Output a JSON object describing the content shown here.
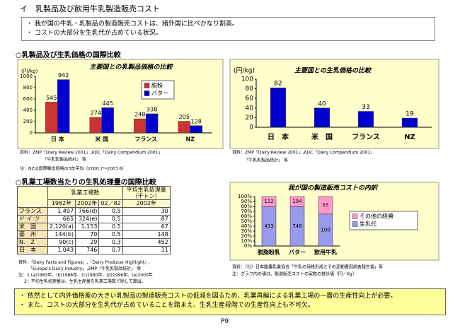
{
  "title": "イ　乳製品及び飲用牛乳製造販売コスト",
  "summary": [
    "我が国の牛乳・乳製品の製造販売コストは、諸外国に比べかなり割高。",
    "コストの大部分を生乳代が占めている状況。"
  ],
  "section1_heading": "○乳製品及び生乳価格の国際比較",
  "chart_data": [
    {
      "type": "bar",
      "title": "主要国との乳製品価格の比較",
      "ylabel": "(円/kg)",
      "categories": [
        "日 本",
        "米 国",
        "フランス",
        "NZ"
      ],
      "series": [
        {
          "name": "脱粉",
          "color": "#cc3333",
          "values": [
            545,
            274,
            248,
            205
          ]
        },
        {
          "name": "バター",
          "color": "#0000cc",
          "values": [
            942,
            445,
            338,
            128
          ]
        }
      ],
      "ylim": [
        0,
        1000
      ],
      "yticks": [
        0,
        200,
        400,
        600,
        800,
        1000
      ],
      "grid": false,
      "legend": "upper-right",
      "notes": [
        "資料：ZMP「Dairy Review 2001」,ADC「Dairy Compendium 2001」",
        "「牛乳乳製品統計」 等",
        "注：NZは国際輸出価格の3年平均（2000.7～2003.6）"
      ]
    },
    {
      "type": "bar",
      "title": "主要国との生乳価格の比較",
      "ylabel": "(円/kg)",
      "categories": [
        "日　本",
        "米　国",
        "フランス",
        "NZ"
      ],
      "values": [
        82,
        40,
        33,
        19
      ],
      "color": "#0000cc",
      "ylim": [
        0,
        100
      ],
      "yticks": [
        0,
        20,
        40,
        60,
        80,
        100
      ],
      "grid": false,
      "notes": [
        "資料：ZMP「Dairy Review 2001」,ADC「Dairy Compendium 2001」",
        "「牛乳乳製品統計」 等"
      ]
    },
    {
      "type": "stacked_bar_100",
      "title": "我が国の製造販売コストの内訳",
      "categories": [
        "脱脂粉乳",
        "バター",
        "飲用牛乳"
      ],
      "series": [
        {
          "name": "生乳代",
          "color": "#9999ee",
          "values": [
            433,
            748,
            100
          ]
        },
        {
          "name": "その他の経費",
          "color": "#ff99cc",
          "values": [
            112,
            194,
            55
          ]
        }
      ],
      "ylim": [
        0,
        100
      ],
      "yticks": [
        {
          "value": 0,
          "label": "0%"
        },
        {
          "value": 10,
          "label": "10%"
        },
        {
          "value": 20,
          "label": "20%"
        },
        {
          "value": 30,
          "label": "30%"
        },
        {
          "value": 40,
          "label": "40%"
        },
        {
          "value": 50,
          "label": "50%"
        },
        {
          "value": 60,
          "label": "60%"
        },
        {
          "value": 70,
          "label": "70%"
        },
        {
          "value": 80,
          "label": "80%"
        },
        {
          "value": 90,
          "label": "90%"
        },
        {
          "value": 100,
          "label": "100%"
        }
      ],
      "grid": false,
      "legend": "right",
      "notes": [
        "資料：（社）日本酪農乳業協会「牛乳の価格形成とその変動要因調査報告書」等",
        "注：グラフ内の値は、製造販売コストの実数の推計値（円／Kg）"
      ]
    }
  ],
  "section2_heading": "○乳業工場数当たりの生乳処理量の国際比較",
  "table": {
    "group_header": "乳業工場数",
    "avg_header": "平均生乳処理量（千トン）",
    "subheaders": [
      "1982年",
      "2002年",
      "02／82",
      "2002年"
    ],
    "rows": [
      [
        "フランス",
        "1,497",
        "766(d)",
        "0.5",
        "30"
      ],
      [
        "ド イ ツ",
        "665",
        "324(e)",
        "0.5",
        "87"
      ],
      [
        "米　国",
        "2,120(a)",
        "1,153",
        "0.5",
        "67"
      ],
      [
        "豪　州",
        "144(b)",
        "70",
        "0.5",
        "148"
      ],
      [
        "N.　Z",
        "90(c)",
        "29",
        "0.3",
        "452"
      ],
      [
        "日　本",
        "1,043",
        "746",
        "0.7",
        "11"
      ]
    ]
  },
  "table_notes": [
    "資料：「Dairy Facts and Figures」,「Dairy Producer Highlight」,",
    "「Europe's Dairy Industry」,ZMP「牛乳乳製品統計」 等",
    "注：1 (a)1983年、(b)1988年、(c)1980年、(d)1996年、(e)2000年",
    "2：平均生乳処理量は、生乳生産量を乳業工場数で除して算出。"
  ],
  "conclusion": [
    "依然として内外価格差の大きい乳製品の製造販売コストの低減を図るため、乳業再編による乳業工場の一層の生産性向上が必要。",
    "また、コストの大部分を生乳代が占めていることを踏まえ、生乳生産段階での生産性向上も不可欠。"
  ],
  "page_number": "P9"
}
